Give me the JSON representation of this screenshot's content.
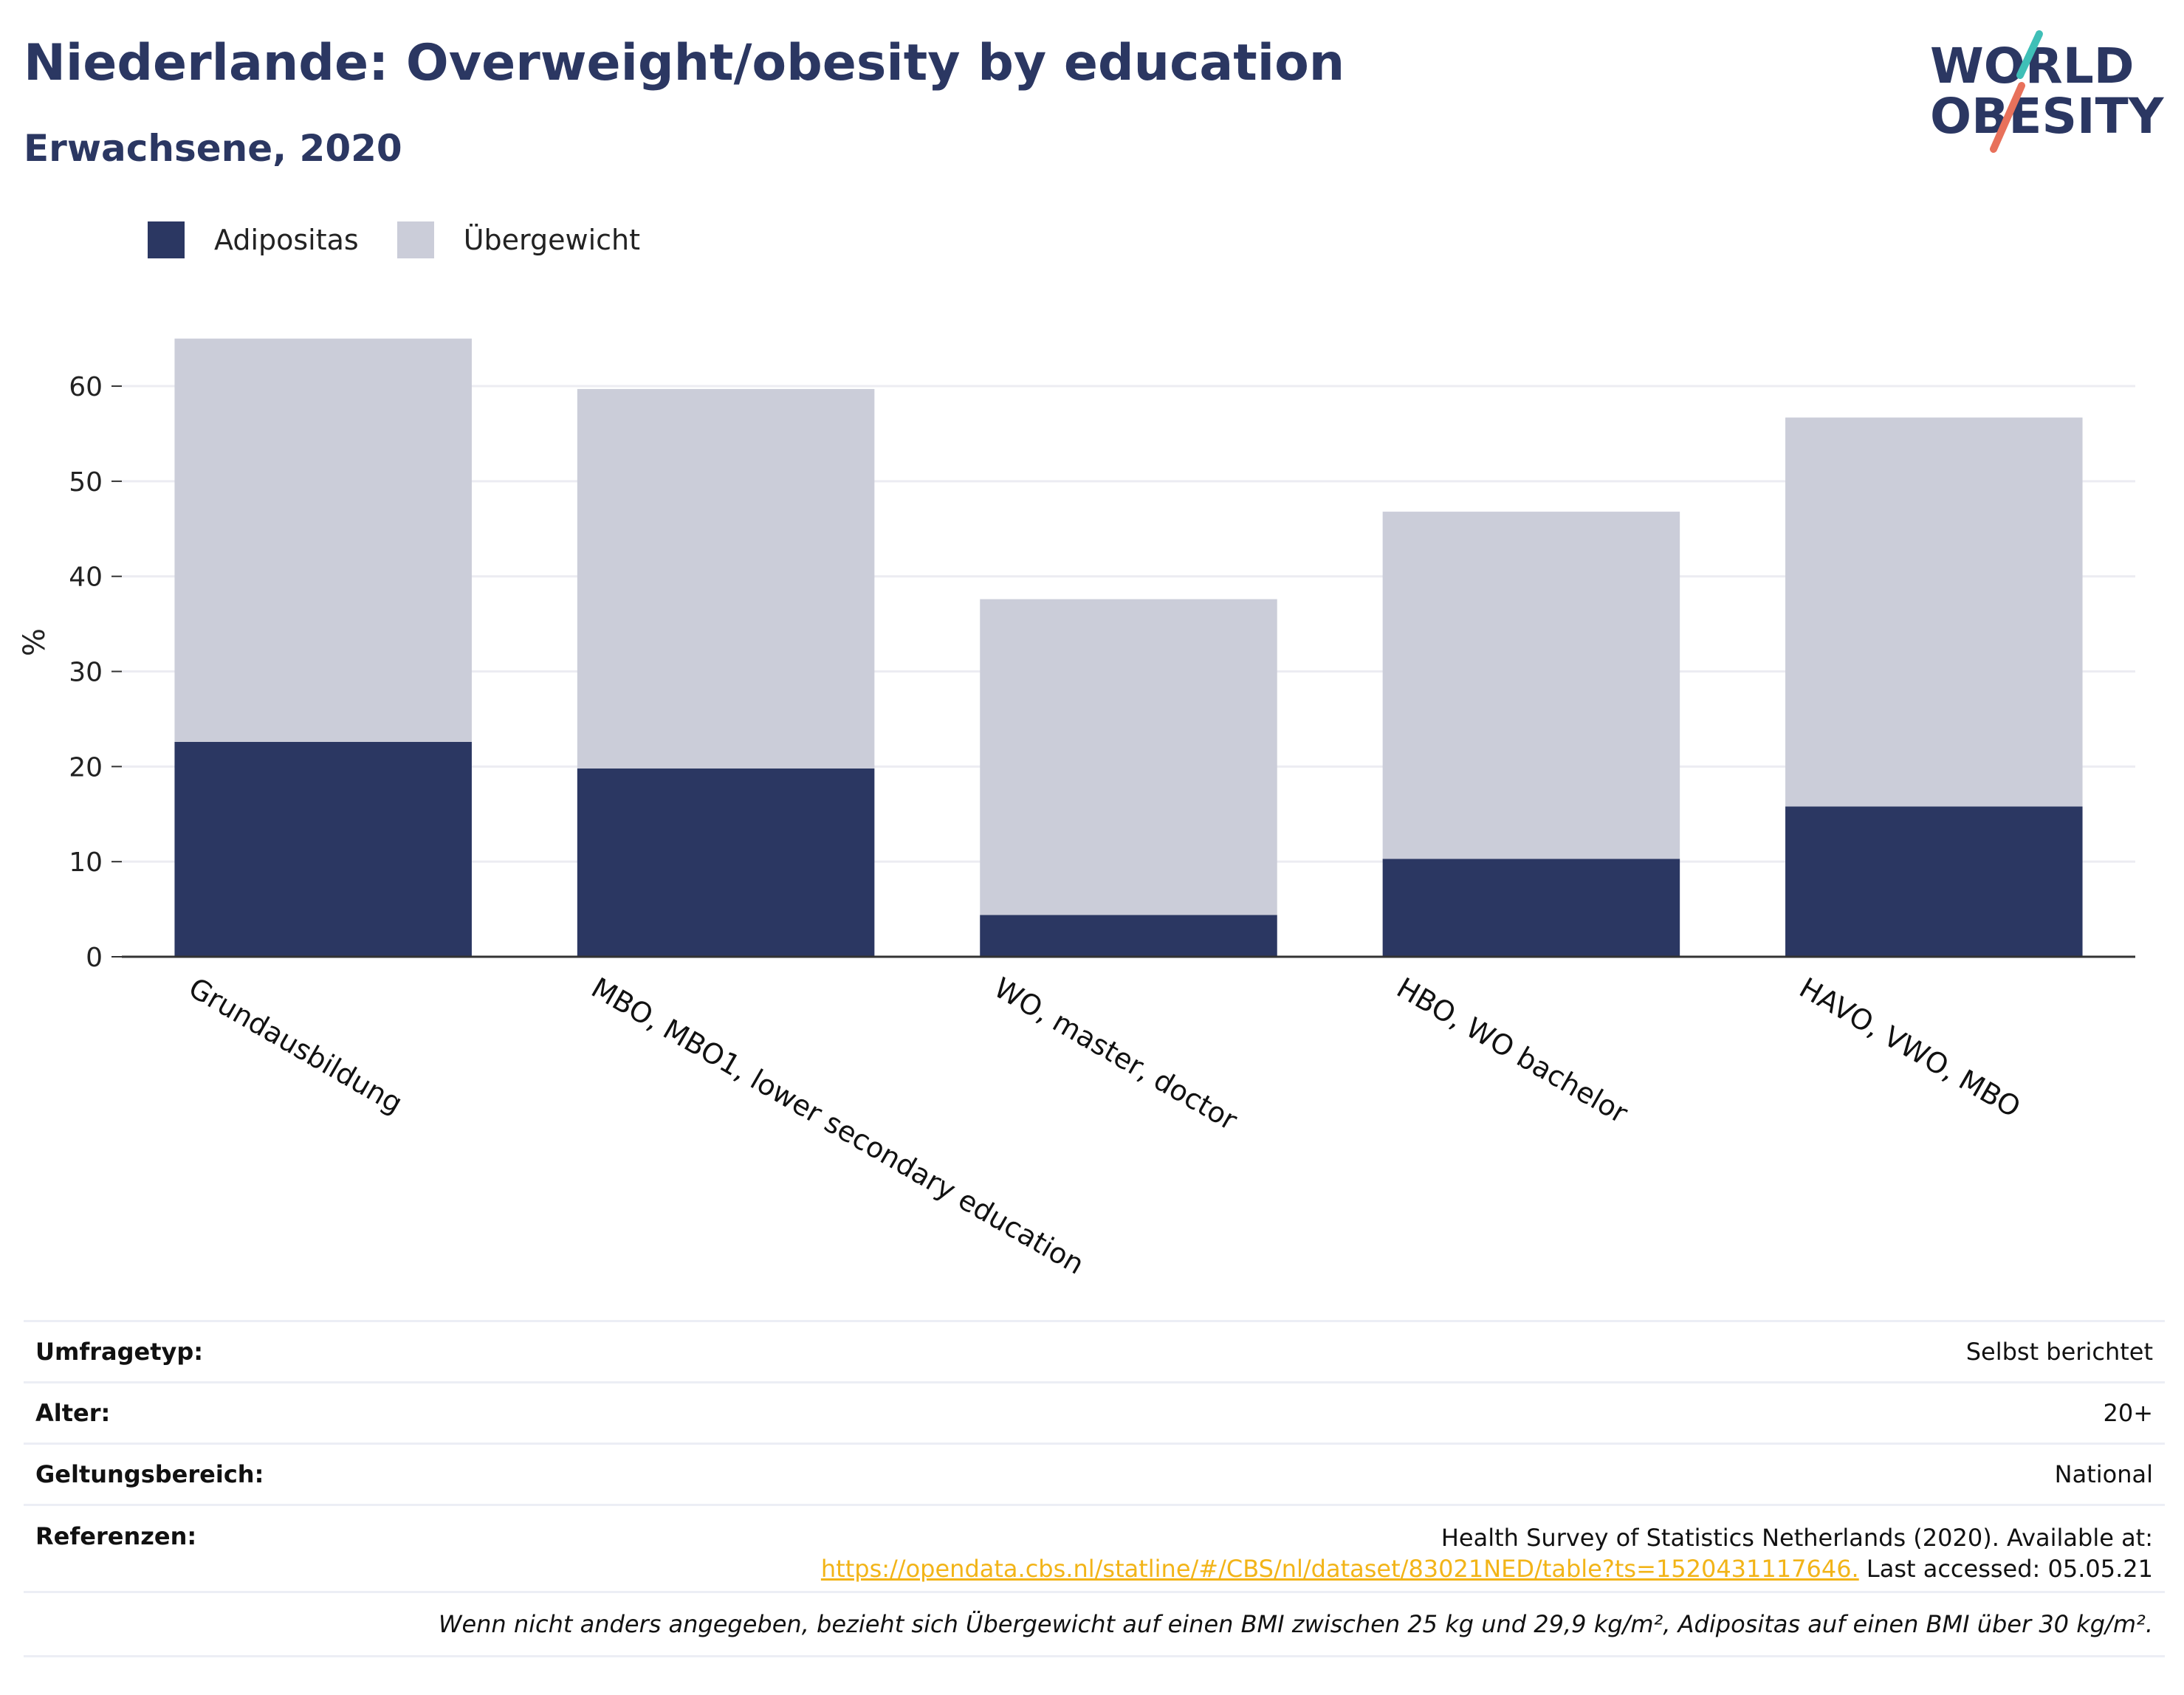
{
  "header": {
    "title": "Niederlande: Overweight/obesity by education",
    "subtitle": "Erwachsene, 2020"
  },
  "logo": {
    "line1": "WORLD",
    "line2": "OBESITY",
    "colors": {
      "text": "#2b3762",
      "slash_top": "#3fbfb7",
      "slash_bottom": "#e8715b"
    }
  },
  "legend": {
    "items": [
      {
        "label": "Adipositas",
        "color": "#2b3762"
      },
      {
        "label": "Übergewicht",
        "color": "#cbcdd9"
      }
    ]
  },
  "chart_data": {
    "type": "bar",
    "stacked": true,
    "categories": [
      "Grundausbildung",
      "MBO, MBO1, lower secondary education",
      "WO, master, doctor",
      "HBO, WO bachelor",
      "HAVO, VWO, MBO"
    ],
    "series": [
      {
        "name": "Adipositas",
        "values": [
          22.6,
          19.8,
          4.4,
          10.3,
          15.8
        ],
        "color": "#2b3762"
      },
      {
        "name": "Übergewicht",
        "values": [
          42.4,
          39.9,
          33.2,
          36.5,
          40.9
        ],
        "color": "#cbcdd9"
      }
    ],
    "ylabel": "%",
    "xlabel": "",
    "ylim": [
      0,
      68
    ],
    "yticks": [
      0,
      10,
      20,
      30,
      40,
      50,
      60
    ],
    "grid": true,
    "legend_position": "top-left"
  },
  "info": {
    "rows": [
      {
        "label": "Umfragetyp:",
        "value": "Selbst berichtet"
      },
      {
        "label": "Alter:",
        "value": "20+"
      },
      {
        "label": "Geltungsbereich:",
        "value": "National"
      }
    ],
    "references": {
      "label": "Referenzen:",
      "text": "Health Survey of Statistics Netherlands (2020). Available at:",
      "link": "https://opendata.cbs.nl/statline/#/CBS/nl/dataset/83021NED/table?ts=1520431117646.",
      "suffix": " Last accessed: 05.05.21"
    },
    "note": "Wenn nicht anders angegeben, bezieht sich Übergewicht auf einen BMI zwischen 25 kg und 29,9 kg/m², Adipositas auf einen BMI über 30 kg/m²."
  }
}
